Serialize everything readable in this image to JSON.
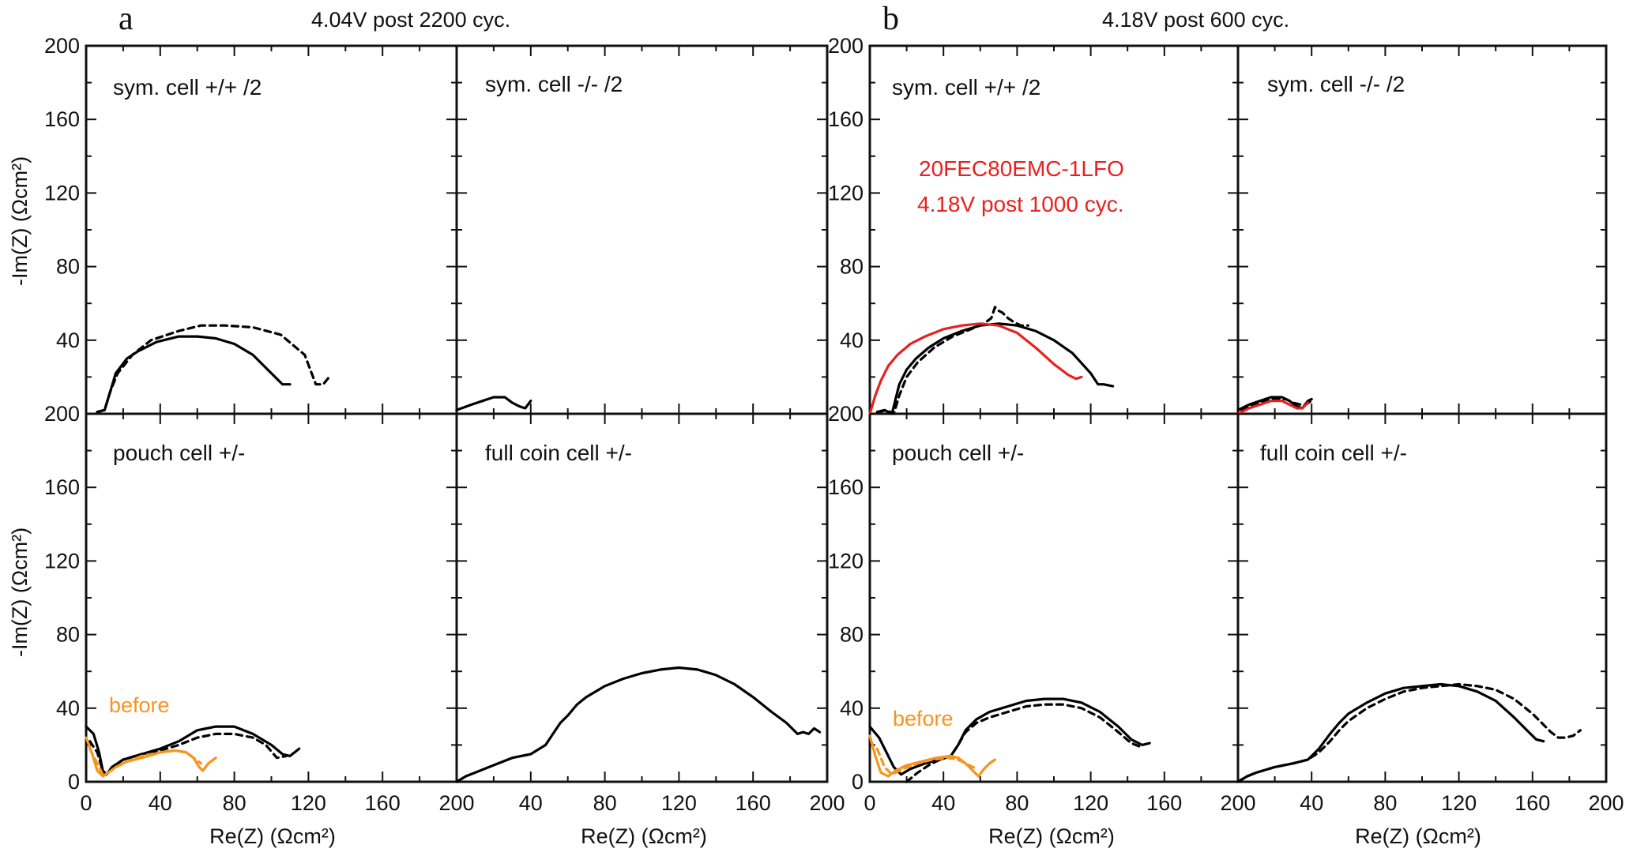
{
  "panel_a": {
    "letter": "a",
    "condition": "4.04V post 2200 cyc."
  },
  "panel_b": {
    "letter": "b",
    "condition": "4.18V post 600 cyc."
  },
  "axis_labels": {
    "y": "-Im(Z) (Ωcm²)",
    "x": "Re(Z) (Ωcm²)"
  },
  "colors": {
    "axes": "#111111",
    "black_series": "#000000",
    "red_series": "#e8201f",
    "orange_series": "#f7941d"
  },
  "chart_data": [
    {
      "type": "line",
      "panel": "a",
      "title": "sym. cell +/+ /2",
      "xlim": [
        0,
        200
      ],
      "ylim": [
        0,
        200
      ],
      "series": [
        {
          "line": "solid",
          "color": "#000000",
          "x": [
            6,
            10,
            13,
            16,
            22,
            28,
            38,
            50,
            60,
            70,
            80,
            90,
            100,
            106,
            110
          ],
          "y": [
            1,
            2,
            12,
            22,
            30,
            34,
            39,
            42,
            42,
            41,
            38,
            32,
            22,
            16,
            16
          ]
        },
        {
          "line": "dashed",
          "color": "#000000",
          "x": [
            6,
            10,
            13,
            17,
            25,
            35,
            50,
            62,
            75,
            90,
            105,
            118,
            124,
            128,
            132
          ],
          "y": [
            1,
            2,
            12,
            22,
            32,
            40,
            45,
            48,
            48,
            47,
            43,
            32,
            16,
            16,
            21
          ]
        }
      ]
    },
    {
      "type": "line",
      "panel": "a",
      "title": "sym. cell -/- /2",
      "xlim": [
        0,
        200
      ],
      "ylim": [
        0,
        200
      ],
      "series": [
        {
          "line": "solid",
          "color": "#000000",
          "x": [
            0,
            8,
            14,
            20,
            26,
            30,
            34,
            37,
            40
          ],
          "y": [
            2,
            5,
            7,
            9,
            9,
            6,
            4,
            3,
            7
          ]
        }
      ]
    },
    {
      "type": "line",
      "panel": "a",
      "title": "pouch cell +/-",
      "xlim": [
        0,
        200
      ],
      "ylim": [
        0,
        200
      ],
      "series": [
        {
          "line": "solid",
          "color": "#000000",
          "x": [
            0,
            4,
            7,
            9,
            11,
            14,
            20,
            30,
            40,
            50,
            60,
            70,
            80,
            90,
            100,
            106,
            110,
            115
          ],
          "y": [
            30,
            26,
            16,
            6,
            4,
            8,
            12,
            15,
            18,
            22,
            28,
            30,
            30,
            26,
            20,
            15,
            14,
            18
          ]
        },
        {
          "line": "dashed",
          "color": "#000000",
          "x": [
            2,
            6,
            9,
            11,
            14,
            20,
            30,
            40,
            50,
            60,
            70,
            80,
            90,
            97,
            103,
            108
          ],
          "y": [
            22,
            16,
            6,
            4,
            8,
            12,
            15,
            17,
            20,
            24,
            26,
            26,
            24,
            20,
            13,
            14
          ]
        },
        {
          "line": "solid",
          "color": "#f7941d",
          "x": [
            0,
            3,
            6,
            9,
            12,
            16,
            22,
            30,
            40,
            48,
            54,
            58,
            61,
            63,
            66,
            70
          ],
          "y": [
            24,
            16,
            6,
            3,
            5,
            8,
            11,
            13,
            16,
            17,
            16,
            13,
            8,
            6,
            10,
            13
          ]
        },
        {
          "line": "dashed",
          "color": "#f7941d",
          "x": [
            2,
            6,
            9,
            12,
            16,
            22,
            30,
            40,
            48,
            54,
            58,
            62
          ],
          "y": [
            18,
            10,
            4,
            5,
            8,
            11,
            14,
            16,
            17,
            16,
            13,
            10
          ]
        }
      ],
      "annotation": "before"
    },
    {
      "type": "line",
      "panel": "a",
      "title": "full coin cell +/-",
      "xlim": [
        0,
        200
      ],
      "ylim": [
        0,
        200
      ],
      "series": [
        {
          "line": "solid",
          "color": "#000000",
          "x": [
            0,
            5,
            10,
            20,
            30,
            40,
            48,
            52,
            56,
            60,
            65,
            70,
            80,
            90,
            100,
            110,
            120,
            130,
            140,
            150,
            160,
            170,
            178,
            184,
            187,
            190,
            193,
            196
          ],
          "y": [
            0,
            3,
            5,
            9,
            13,
            15,
            20,
            26,
            32,
            36,
            42,
            46,
            52,
            56,
            59,
            61,
            62,
            61,
            58,
            53,
            46,
            38,
            32,
            26,
            27,
            26,
            29,
            27
          ]
        }
      ]
    },
    {
      "type": "line",
      "panel": "b",
      "title": "sym. cell +/+ /2",
      "xlim": [
        0,
        200
      ],
      "ylim": [
        0,
        200
      ],
      "series": [
        {
          "line": "solid",
          "color": "#000000",
          "x": [
            4,
            8,
            12,
            14,
            16,
            20,
            25,
            32,
            40,
            50,
            60,
            70,
            80,
            90,
            100,
            110,
            120,
            124,
            127,
            132
          ],
          "y": [
            1,
            2,
            0,
            8,
            16,
            24,
            30,
            36,
            41,
            45,
            48,
            49,
            48,
            45,
            40,
            33,
            22,
            16,
            16,
            15
          ]
        },
        {
          "line": "dashed",
          "color": "#000000",
          "x": [
            5,
            9,
            13,
            16,
            20,
            26,
            35,
            45,
            55,
            62,
            66,
            68,
            70,
            72,
            75,
            78,
            82,
            86
          ],
          "y": [
            1,
            2,
            0,
            10,
            20,
            28,
            36,
            42,
            46,
            49,
            52,
            58,
            56,
            55,
            52,
            50,
            48,
            48
          ]
        },
        {
          "line": "solid",
          "color": "#e8201f",
          "x": [
            0,
            3,
            6,
            10,
            15,
            22,
            30,
            40,
            50,
            60,
            70,
            80,
            90,
            100,
            108,
            112,
            115
          ],
          "y": [
            0,
            10,
            18,
            26,
            32,
            38,
            42,
            46,
            48,
            49,
            48,
            44,
            36,
            27,
            21,
            19,
            20
          ]
        }
      ],
      "annotation": [
        "20FEC80EMC-1LFO",
        "4.18V post 1000 cyc."
      ]
    },
    {
      "type": "line",
      "panel": "b",
      "title": "sym. cell -/- /2",
      "xlim": [
        0,
        200
      ],
      "ylim": [
        0,
        200
      ],
      "series": [
        {
          "line": "solid",
          "color": "#000000",
          "x": [
            0,
            6,
            12,
            18,
            24,
            28,
            32,
            35,
            38,
            40
          ],
          "y": [
            2,
            5,
            7,
            9,
            9,
            7,
            4,
            3,
            7,
            8
          ]
        },
        {
          "line": "dashed",
          "color": "#000000",
          "x": [
            2,
            8,
            14,
            20,
            26,
            30,
            34,
            37,
            41
          ],
          "y": [
            2,
            5,
            7,
            8,
            8,
            6,
            5,
            5,
            8
          ]
        },
        {
          "line": "solid",
          "color": "#e8201f",
          "x": [
            0,
            6,
            12,
            18,
            24,
            28,
            32,
            35,
            38
          ],
          "y": [
            0,
            3,
            5,
            7,
            7,
            5,
            3,
            3,
            6
          ]
        }
      ]
    },
    {
      "type": "line",
      "panel": "b",
      "title": "pouch cell +/-",
      "xlim": [
        0,
        200
      ],
      "ylim": [
        0,
        200
      ],
      "series": [
        {
          "line": "solid",
          "color": "#000000",
          "x": [
            0,
            5,
            9,
            13,
            17,
            22,
            30,
            38,
            44,
            48,
            52,
            58,
            65,
            75,
            85,
            95,
            105,
            115,
            125,
            135,
            142,
            148,
            152
          ],
          "y": [
            30,
            24,
            16,
            8,
            4,
            7,
            10,
            12,
            14,
            20,
            28,
            34,
            38,
            41,
            44,
            45,
            45,
            43,
            38,
            30,
            23,
            20,
            21
          ]
        },
        {
          "line": "dashed",
          "color": "#000000",
          "x": [
            20,
            26,
            32,
            38,
            44,
            48,
            52,
            58,
            65,
            75,
            85,
            95,
            105,
            115,
            125,
            135,
            142,
            147
          ],
          "y": [
            0,
            5,
            9,
            12,
            14,
            20,
            27,
            32,
            35,
            38,
            41,
            42,
            42,
            40,
            35,
            27,
            21,
            19
          ]
        },
        {
          "line": "solid",
          "color": "#f7941d",
          "x": [
            0,
            3,
            6,
            10,
            14,
            20,
            28,
            36,
            44,
            48,
            52,
            56,
            59,
            62,
            65,
            68
          ],
          "y": [
            25,
            14,
            5,
            3,
            6,
            9,
            11,
            13,
            14,
            13,
            10,
            6,
            3,
            7,
            10,
            12
          ]
        },
        {
          "line": "dashed",
          "color": "#f7941d",
          "x": [
            4,
            8,
            12,
            18,
            26,
            34,
            42,
            48,
            54,
            58
          ],
          "y": [
            18,
            8,
            4,
            7,
            10,
            12,
            13,
            12,
            9,
            7
          ]
        }
      ],
      "annotation": "before"
    },
    {
      "type": "line",
      "panel": "b",
      "title": "full coin cell +/-",
      "xlim": [
        0,
        200
      ],
      "ylim": [
        0,
        200
      ],
      "series": [
        {
          "line": "solid",
          "color": "#000000",
          "x": [
            0,
            5,
            10,
            20,
            30,
            38,
            44,
            50,
            55,
            60,
            70,
            80,
            90,
            100,
            110,
            120,
            130,
            140,
            150,
            158,
            162,
            166
          ],
          "y": [
            0,
            3,
            5,
            8,
            10,
            12,
            18,
            26,
            32,
            37,
            43,
            48,
            51,
            52,
            53,
            52,
            49,
            44,
            35,
            27,
            23,
            22
          ]
        },
        {
          "line": "dashed",
          "color": "#000000",
          "x": [
            0,
            5,
            10,
            20,
            30,
            38,
            44,
            50,
            55,
            60,
            70,
            80,
            90,
            100,
            110,
            120,
            130,
            140,
            150,
            160,
            170,
            174,
            178,
            182,
            186
          ],
          "y": [
            0,
            3,
            5,
            8,
            10,
            12,
            16,
            22,
            28,
            33,
            40,
            45,
            49,
            51,
            52,
            53,
            52,
            50,
            45,
            37,
            27,
            24,
            24,
            25,
            28
          ]
        }
      ]
    }
  ]
}
